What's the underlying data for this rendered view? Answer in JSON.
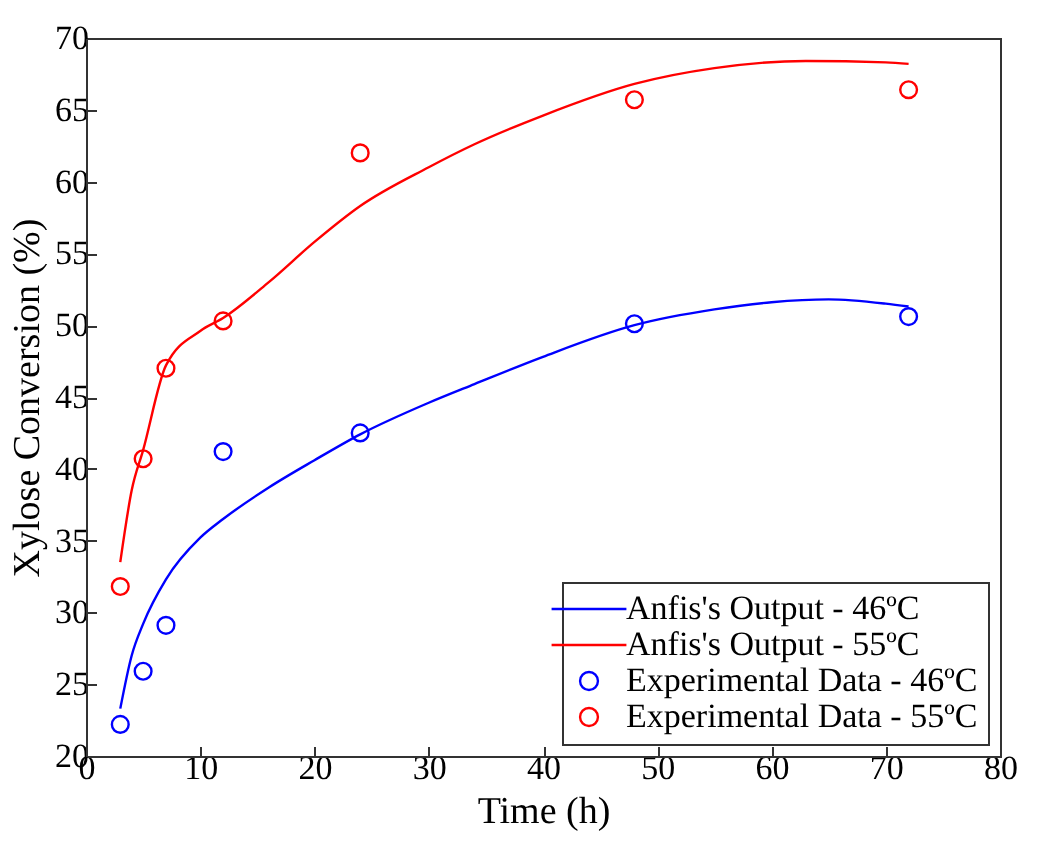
{
  "chart_data": {
    "type": "line",
    "xlabel": "Time (h)",
    "ylabel": "Xylose Conversion (%)",
    "xlim": [
      0,
      80
    ],
    "xticks": [
      0,
      10,
      20,
      30,
      40,
      50,
      60,
      70,
      80
    ],
    "ylim": [
      20,
      70
    ],
    "yticks": [
      20,
      25,
      30,
      35,
      40,
      45,
      50,
      55,
      60,
      65,
      70
    ],
    "legend": "bottom right",
    "line_style": "solid",
    "series": [
      {
        "name": "Anfis's Output - 46ºC",
        "color": "#0000ff",
        "x": [
          3,
          4,
          5,
          7,
          10,
          12,
          16,
          20,
          24,
          30,
          34,
          40,
          48,
          55,
          60,
          65,
          70,
          72
        ],
        "values": [
          23.3,
          27,
          29.2,
          32.3,
          35.2,
          36.5,
          38.7,
          40.6,
          42.4,
          44.6,
          45.9,
          47.8,
          50,
          51.1,
          51.6,
          51.8,
          51.5,
          51.3
        ]
      },
      {
        "name": "Anfis's Output - 55ºC",
        "color": "#ff0000",
        "x": [
          3,
          4,
          5,
          7,
          10,
          12,
          16,
          20,
          24,
          30,
          34,
          40,
          48,
          55,
          63,
          70,
          72
        ],
        "values": [
          33.5,
          38.5,
          41.3,
          47.2,
          49.6,
          50.5,
          53,
          55.8,
          58.3,
          61,
          62.6,
          64.6,
          66.8,
          67.9,
          68.4,
          68.3,
          68.2
        ]
      },
      {
        "name": "Experimental Data - 46ºC",
        "type": "scatter",
        "marker": "circle",
        "color": "#0000ff",
        "x": [
          3,
          5,
          7,
          12,
          24,
          48,
          72
        ],
        "values": [
          22.2,
          25.9,
          29.1,
          41.2,
          42.5,
          50.1,
          50.6
        ]
      },
      {
        "name": "Experimental Data - 55ºC",
        "type": "scatter",
        "marker": "circle",
        "color": "#ff0000",
        "x": [
          3,
          5,
          7,
          12,
          24,
          48,
          72
        ],
        "values": [
          31.8,
          40.7,
          47,
          50.3,
          62,
          65.7,
          66.4
        ]
      }
    ]
  }
}
